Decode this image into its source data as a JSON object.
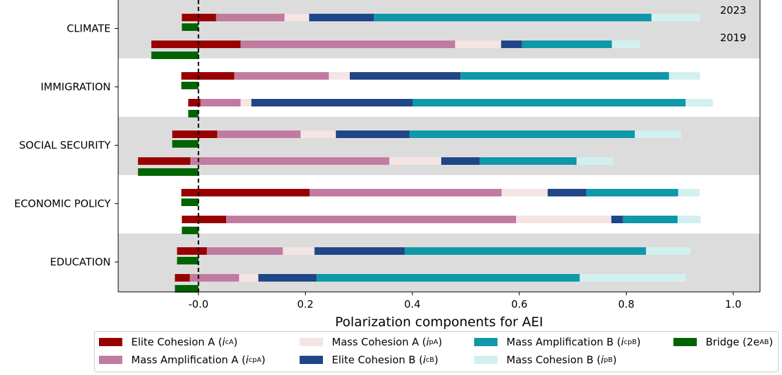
{
  "chart_data": {
    "type": "bar",
    "orientation": "horizontal-stacked",
    "xlabel": "Polarization components for AEI",
    "xlim": [
      -0.15,
      1.05
    ],
    "xticks": [
      "-0.0",
      "0.2",
      "0.4",
      "0.6",
      "0.8",
      "1.0"
    ],
    "xtick_values": [
      0.0,
      0.2,
      0.4,
      0.6,
      0.8,
      1.0
    ],
    "reference_line": {
      "x": 0.0,
      "style": "dashed",
      "color": "#000000"
    },
    "year_labels": [
      "2023",
      "2019"
    ],
    "categories": [
      "CLIMATE",
      "IMMIGRATION",
      "SOCIAL SECURITY",
      "ECONOMIC POLICY",
      "EDUCATION"
    ],
    "band_colors": [
      "#dcdcdc",
      "#ffffff",
      "#dcdcdc",
      "#ffffff",
      "#dcdcdc"
    ],
    "component_order": [
      "Elite Cohesion A",
      "Mass Amplification A",
      "Mass Cohesion A",
      "Elite Cohesion B",
      "Mass Amplification B",
      "Mass Cohesion B"
    ],
    "series": [
      {
        "key": "icA",
        "name": "Elite Cohesion A",
        "color": "#990000"
      },
      {
        "key": "icpA",
        "name": "Mass Amplification A",
        "color": "#c27ba0"
      },
      {
        "key": "ipA",
        "name": "Mass Cohesion A",
        "color": "#f4e4e4"
      },
      {
        "key": "icB",
        "name": "Elite Cohesion B",
        "color": "#1f4788"
      },
      {
        "key": "icpB",
        "name": "Mass Amplification B",
        "color": "#0e98a8"
      },
      {
        "key": "ipB",
        "name": "Mass Cohesion B",
        "color": "#d2f0f0"
      },
      {
        "key": "bridge",
        "name": "Bridge",
        "color": "#006400"
      }
    ],
    "rows": [
      {
        "category": "CLIMATE",
        "year": "2023",
        "start": -0.031,
        "values": [
          0.064,
          0.128,
          0.046,
          0.121,
          0.519,
          0.091
        ],
        "bridge": -0.031
      },
      {
        "category": "CLIMATE",
        "year": "2019",
        "start": -0.088,
        "values": [
          0.167,
          0.401,
          0.086,
          0.039,
          0.168,
          0.052
        ],
        "bridge": -0.088
      },
      {
        "category": "IMMIGRATION",
        "year": "2023",
        "start": -0.032,
        "values": [
          0.099,
          0.177,
          0.039,
          0.207,
          0.39,
          0.058
        ],
        "bridge": -0.032
      },
      {
        "category": "IMMIGRATION",
        "year": "2019",
        "start": -0.019,
        "values": [
          0.023,
          0.075,
          0.02,
          0.302,
          0.51,
          0.051
        ],
        "bridge": -0.019
      },
      {
        "category": "SOCIAL SECURITY",
        "year": "2023",
        "start": -0.049,
        "values": [
          0.084,
          0.156,
          0.066,
          0.138,
          0.421,
          0.087
        ],
        "bridge": -0.049
      },
      {
        "category": "SOCIAL SECURITY",
        "year": "2019",
        "start": -0.113,
        "values": [
          0.098,
          0.372,
          0.097,
          0.072,
          0.181,
          0.068
        ],
        "bridge": -0.113
      },
      {
        "category": "ECONOMIC POLICY",
        "year": "2023",
        "start": -0.032,
        "values": [
          0.24,
          0.359,
          0.086,
          0.072,
          0.172,
          0.04
        ],
        "bridge": -0.032
      },
      {
        "category": "ECONOMIC POLICY",
        "year": "2019",
        "start": -0.031,
        "values": [
          0.083,
          0.542,
          0.178,
          0.022,
          0.102,
          0.043
        ],
        "bridge": -0.031
      },
      {
        "category": "EDUCATION",
        "year": "2023",
        "start": -0.04,
        "values": [
          0.056,
          0.142,
          0.059,
          0.169,
          0.451,
          0.083
        ],
        "bridge": -0.04
      },
      {
        "category": "EDUCATION",
        "year": "2019",
        "start": -0.044,
        "values": [
          0.028,
          0.092,
          0.036,
          0.109,
          0.492,
          0.198
        ],
        "bridge": -0.044
      }
    ]
  },
  "legend": [
    {
      "label": "Elite Cohesion A",
      "sym_main": "i",
      "sym_sub": "cA",
      "color": "#990000"
    },
    {
      "label": "Mass Amplification A",
      "sym_main": "i",
      "sym_sub": "cpA",
      "color": "#c27ba0"
    },
    {
      "label": "Mass Cohesion A",
      "sym_main": "i",
      "sym_sub": "pA",
      "color": "#f4e4e4"
    },
    {
      "label": "Elite Cohesion B",
      "sym_main": "i",
      "sym_sub": "cB",
      "color": "#1f4788"
    },
    {
      "label": "Mass Amplification B",
      "sym_main": "i",
      "sym_sub": "cpB",
      "color": "#0e98a8"
    },
    {
      "label": "Mass Cohesion B",
      "sym_main": "i",
      "sym_sub": "pB",
      "color": "#d2f0f0"
    },
    {
      "label": "Bridge",
      "sym_main": "2e",
      "sym_sub": "AB",
      "color": "#006400"
    }
  ]
}
